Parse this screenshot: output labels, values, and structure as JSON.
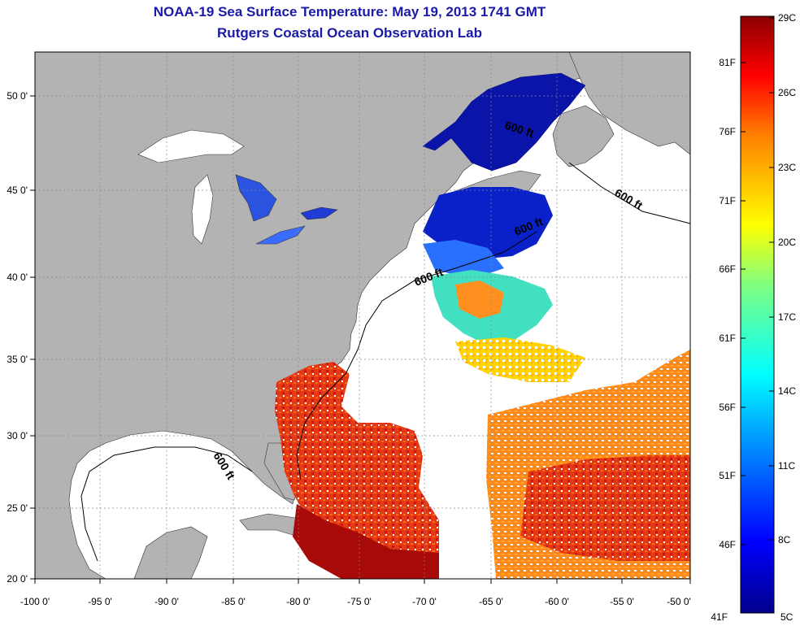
{
  "title": {
    "line1": "NOAA-19 Sea Surface Temperature:  May 19, 2013 1741 GMT",
    "line2": "Rutgers Coastal Ocean Observation Lab"
  },
  "axes": {
    "lon_labels": [
      "-100 0'",
      "-95 0'",
      "-90 0'",
      "-85 0'",
      "-80 0'",
      "-75 0'",
      "-70 0'",
      "-65 0'",
      "-60 0'",
      "-55 0'",
      "-50 0'"
    ],
    "lat_labels": [
      "50 0'",
      "45 0'",
      "40 0'",
      "35 0'",
      "30 0'",
      "25 0'",
      "20 0'"
    ]
  },
  "isobath_labels": [
    "600 ft",
    "600 ft",
    "600 ft",
    "600 ft",
    "600 ft"
  ],
  "colorbar": {
    "celsius": [
      "29C",
      "26C",
      "23C",
      "20C",
      "17C",
      "14C",
      "11C",
      "8C",
      "5C"
    ],
    "fahrenheit": [
      "81F",
      "76F",
      "71F",
      "66F",
      "61F",
      "56F",
      "51F",
      "46F",
      "41F"
    ]
  },
  "colors": {
    "land": "#b3b3b3",
    "title": "#1a1aa8"
  }
}
